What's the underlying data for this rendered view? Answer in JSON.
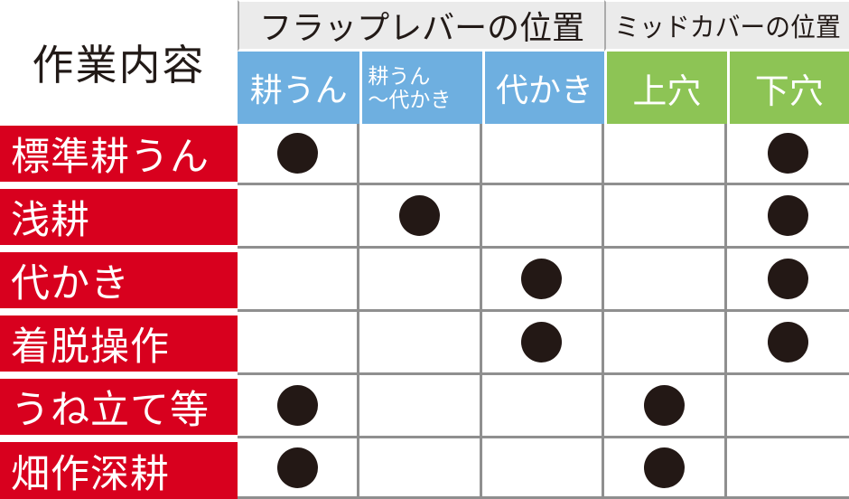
{
  "table": {
    "corner_header": "作業内容",
    "group_headers": [
      {
        "label": "フラップレバーの位置",
        "span": 3
      },
      {
        "label": "ミッドカバーの位置",
        "span": 2
      }
    ],
    "column_headers": [
      {
        "label": "耕うん",
        "group": "flap"
      },
      {
        "label": "耕うん\n〜代かき",
        "group": "flap"
      },
      {
        "label": "代かき",
        "group": "flap"
      },
      {
        "label": "上穴",
        "group": "mid"
      },
      {
        "label": "下穴",
        "group": "mid"
      }
    ],
    "rows": [
      {
        "label": "標準耕うん",
        "dots": [
          true,
          false,
          false,
          false,
          true
        ]
      },
      {
        "label": "浅耕",
        "dots": [
          false,
          true,
          false,
          false,
          true
        ]
      },
      {
        "label": "代かき",
        "dots": [
          false,
          false,
          true,
          false,
          true
        ]
      },
      {
        "label": "着脱操作",
        "dots": [
          false,
          false,
          true,
          false,
          true
        ]
      },
      {
        "label": "うね立て等",
        "dots": [
          true,
          false,
          false,
          true,
          false
        ]
      },
      {
        "label": "畑作深耕",
        "dots": [
          true,
          false,
          false,
          true,
          false
        ]
      }
    ],
    "dot_symbol": "●",
    "colors": {
      "flap_header_bg": "#6EAFE0",
      "mid_header_bg": "#8DC455",
      "row_label_bg": "#D8001E",
      "group_header_bg": "#EBEBEB",
      "grid_line": "#8F8F8F",
      "dot": "#231815",
      "divider": "#ABABAB",
      "text": "#221A17"
    }
  }
}
